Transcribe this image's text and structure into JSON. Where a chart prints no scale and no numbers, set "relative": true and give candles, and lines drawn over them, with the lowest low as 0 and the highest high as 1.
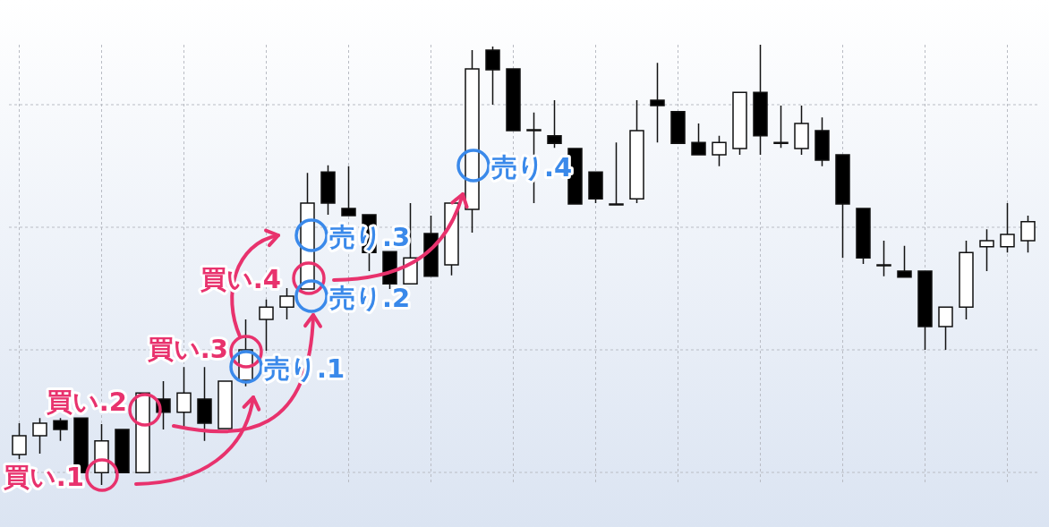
{
  "chart_data": {
    "type": "candlestick",
    "relative": true,
    "grid": true,
    "categories": [
      null,
      null,
      null,
      null,
      null,
      null,
      null,
      null,
      null,
      null,
      null,
      null,
      null,
      null,
      null,
      null,
      null,
      null,
      null,
      null,
      null,
      null,
      null,
      null,
      null,
      null,
      null,
      null,
      null,
      null,
      null,
      null,
      null,
      null,
      null,
      null,
      null,
      null,
      null,
      null,
      null,
      null,
      null,
      null,
      null,
      null,
      null,
      null,
      null,
      null
    ],
    "ohlc": [
      [
        0.069,
        0.14,
        0.059,
        0.112
      ],
      [
        0.112,
        0.152,
        0.071,
        0.14
      ],
      [
        0.146,
        0.152,
        0.1,
        0.126
      ],
      [
        0.152,
        0.152,
        0.028,
        0.028
      ],
      [
        0.028,
        0.138,
        0,
        0.1
      ],
      [
        0.126,
        0.126,
        0.028,
        0.028
      ],
      [
        0.028,
        0.209,
        0.028,
        0.209
      ],
      [
        0.195,
        0.236,
        0.126,
        0.165
      ],
      [
        0.165,
        0.268,
        0.132,
        0.209
      ],
      [
        0.195,
        0.268,
        0.1,
        0.14
      ],
      [
        0.128,
        0.236,
        0.128,
        0.236
      ],
      [
        0.238,
        0.376,
        0.224,
        0.307
      ],
      [
        0.376,
        0.421,
        0.305,
        0.404
      ],
      [
        0.404,
        0.447,
        0.376,
        0.429
      ],
      [
        0.445,
        0.709,
        0.445,
        0.64
      ],
      [
        0.711,
        0.726,
        0.614,
        0.64
      ],
      [
        0.628,
        0.724,
        0.612,
        0.612
      ],
      [
        0.614,
        0.614,
        0.486,
        0.528
      ],
      [
        0.53,
        0.53,
        0.445,
        0.457
      ],
      [
        0.457,
        0.64,
        0.457,
        0.516
      ],
      [
        0.571,
        0.612,
        0.474,
        0.474
      ],
      [
        0.5,
        0.64,
        0.476,
        0.64
      ],
      [
        0.626,
        0.988,
        0.573,
        0.945
      ],
      [
        0.988,
        0.996,
        0.864,
        0.943
      ],
      [
        0.945,
        0.945,
        0.805,
        0.805
      ],
      [
        0.807,
        0.846,
        0.64,
        0.807
      ],
      [
        0.793,
        0.874,
        0.766,
        0.776
      ],
      [
        0.764,
        0.764,
        0.638,
        0.638
      ],
      [
        0.711,
        0.711,
        0.64,
        0.65
      ],
      [
        0.638,
        0.778,
        0.638,
        0.638
      ],
      [
        0.65,
        0.874,
        0.64,
        0.805
      ],
      [
        0.874,
        0.959,
        0.778,
        0.862
      ],
      [
        0.848,
        0.848,
        0.776,
        0.776
      ],
      [
        0.778,
        0.821,
        0.75,
        0.75
      ],
      [
        0.75,
        0.793,
        0.724,
        0.778
      ],
      [
        0.764,
        0.892,
        0.75,
        0.892
      ],
      [
        0.892,
        1,
        0.75,
        0.793
      ],
      [
        0.778,
        0.862,
        0.766,
        0.778
      ],
      [
        0.764,
        0.862,
        0.75,
        0.821
      ],
      [
        0.805,
        0.835,
        0.724,
        0.738
      ],
      [
        0.75,
        0.75,
        0.516,
        0.638
      ],
      [
        0.628,
        0.628,
        0.502,
        0.516
      ],
      [
        0.5,
        0.555,
        0.474,
        0.5
      ],
      [
        0.486,
        0.543,
        0.472,
        0.472
      ],
      [
        0.486,
        0.486,
        0.307,
        0.36
      ],
      [
        0.36,
        0.404,
        0.307,
        0.404
      ],
      [
        0.404,
        0.555,
        0.376,
        0.528
      ],
      [
        0.541,
        0.581,
        0.486,
        0.555
      ],
      [
        0.541,
        0.64,
        0.528,
        0.569
      ],
      [
        0.555,
        0.612,
        0.528,
        0.598
      ]
    ],
    "colors": [
      "#ffffff",
      "#ffffff",
      "#000000",
      "#000000",
      "#ffffff",
      "#000000",
      "#ffffff",
      "#000000",
      "#ffffff",
      "#000000",
      "#ffffff",
      "#ffffff",
      "#ffffff",
      "#ffffff",
      "#ffffff",
      "#000000",
      "#000000",
      "#000000",
      "#000000",
      "#ffffff",
      "#000000",
      "#ffffff",
      "#ffffff",
      "#000000",
      "#000000",
      "#000000",
      "#000000",
      "#000000",
      "#000000",
      "#000000",
      "#ffffff",
      "#000000",
      "#000000",
      "#000000",
      "#ffffff",
      "#ffffff",
      "#000000",
      "#000000",
      "#ffffff",
      "#000000",
      "#000000",
      "#000000",
      "#000000",
      "#000000",
      "#000000",
      "#ffffff",
      "#ffffff",
      "#ffffff",
      "#ffffff",
      "#ffffff"
    ],
    "annotations": [
      "買い.1",
      "買い.2",
      "買い.3",
      "買い.4",
      "売り.1",
      "売り.2",
      "売り.3",
      "売り.4"
    ]
  }
}
